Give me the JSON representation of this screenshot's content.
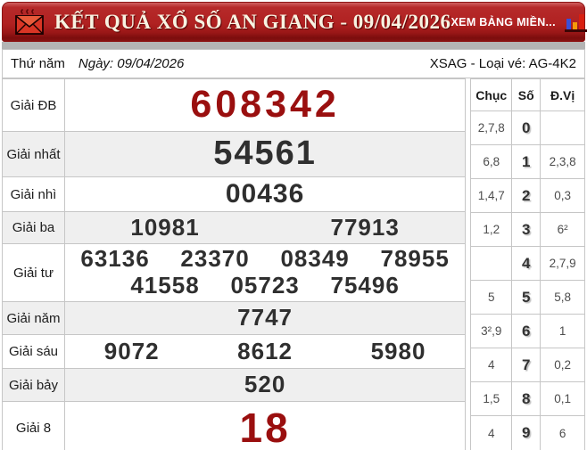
{
  "header": {
    "title": "KẾT QUẢ XỔ SỐ AN GIANG - 09/04/2026",
    "link_label": "XEM BẢNG MIỀN...",
    "icons": {
      "left": "envelope-icon",
      "right": "bar-chart-icon"
    },
    "colors": {
      "bar_red": "#b02121",
      "title_ivory": "#f8f3e2"
    }
  },
  "info_row": {
    "weekday": "Thứ năm",
    "date_label": "Ngày: 09/04/2026",
    "ticket_info": "XSAG - Loại vé: AG-4K2"
  },
  "prizes": {
    "rows": [
      {
        "label": "Giải ĐB",
        "highlight": true,
        "lines": [
          [
            "608342"
          ]
        ]
      },
      {
        "label": "Giải nhất",
        "highlight": false,
        "lines": [
          [
            "54561"
          ]
        ]
      },
      {
        "label": "Giải nhì",
        "highlight": false,
        "lines": [
          [
            "00436"
          ]
        ]
      },
      {
        "label": "Giải ba",
        "highlight": false,
        "lines": [
          [
            "10981",
            "77913"
          ]
        ]
      },
      {
        "label": "Giải tư",
        "highlight": false,
        "lines": [
          [
            "63136",
            "23370",
            "08349",
            "78955"
          ],
          [
            "41558",
            "05723",
            "75496"
          ]
        ]
      },
      {
        "label": "Giải năm",
        "highlight": false,
        "lines": [
          [
            "7747"
          ]
        ]
      },
      {
        "label": "Giải sáu",
        "highlight": false,
        "lines": [
          [
            "9072",
            "8612",
            "5980"
          ]
        ]
      },
      {
        "label": "Giải bảy",
        "highlight": false,
        "lines": [
          [
            "520"
          ]
        ]
      },
      {
        "label": "Giải 8",
        "highlight": true,
        "lines": [
          [
            "18"
          ]
        ]
      }
    ],
    "colors": {
      "highlight_red": "#9a0f0f",
      "number_dark": "#2f2f2f",
      "alt_row_bg": "#efefef"
    }
  },
  "summary": {
    "headers": [
      "Chục",
      "Số",
      "Đ.Vị"
    ],
    "rows": [
      [
        "2,7,8",
        "0",
        ""
      ],
      [
        "6,8",
        "1",
        "2,3,8"
      ],
      [
        "1,4,7",
        "2",
        "0,3"
      ],
      [
        "1,2",
        "3",
        "6²"
      ],
      [
        "",
        "4",
        "2,7,9"
      ],
      [
        "5",
        "5",
        "5,8"
      ],
      [
        "3²,9",
        "6",
        "1"
      ],
      [
        "4",
        "7",
        "0,2"
      ],
      [
        "1,5",
        "8",
        "0,1"
      ],
      [
        "4",
        "9",
        "6"
      ]
    ]
  }
}
